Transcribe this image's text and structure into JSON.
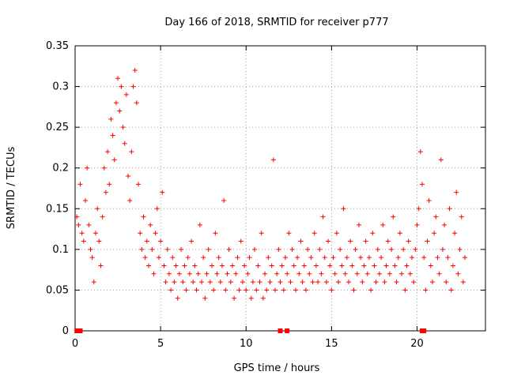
{
  "chart_data": {
    "type": "scatter",
    "title": "Day 166 of 2018, SRMTID for receiver p777",
    "xlabel": "GPS time / hours",
    "ylabel": "SRMTID / TECUs",
    "xlim": [
      0,
      24
    ],
    "ylim": [
      0,
      0.35
    ],
    "xticks": [
      0,
      5,
      10,
      15,
      20
    ],
    "xtick_labels": [
      "0",
      "5",
      "10",
      "15",
      "20"
    ],
    "yticks": [
      0,
      0.05,
      0.1,
      0.15,
      0.2,
      0.25,
      0.3,
      0.35
    ],
    "ytick_labels": [
      "0",
      "0.05",
      "0.1",
      "0.15",
      "0.2",
      "0.25",
      "0.3",
      "0.35"
    ],
    "grid": true,
    "marker": "+",
    "marker_color": "#ff0000",
    "zero_markers": [
      0.1,
      0.3,
      12.0,
      12.4,
      20.3,
      20.4
    ],
    "series": [
      {
        "name": "SRMTID",
        "points": [
          [
            0.1,
            0.14
          ],
          [
            0.2,
            0.13
          ],
          [
            0.3,
            0.18
          ],
          [
            0.4,
            0.12
          ],
          [
            0.5,
            0.11
          ],
          [
            0.6,
            0.16
          ],
          [
            0.7,
            0.2
          ],
          [
            0.8,
            0.13
          ],
          [
            0.9,
            0.1
          ],
          [
            1.0,
            0.09
          ],
          [
            1.1,
            0.06
          ],
          [
            1.2,
            0.12
          ],
          [
            1.3,
            0.15
          ],
          [
            1.4,
            0.11
          ],
          [
            1.5,
            0.08
          ],
          [
            1.6,
            0.14
          ],
          [
            1.7,
            0.2
          ],
          [
            1.8,
            0.17
          ],
          [
            1.9,
            0.22
          ],
          [
            2.0,
            0.18
          ],
          [
            2.1,
            0.26
          ],
          [
            2.2,
            0.24
          ],
          [
            2.3,
            0.21
          ],
          [
            2.4,
            0.28
          ],
          [
            2.5,
            0.31
          ],
          [
            2.6,
            0.27
          ],
          [
            2.7,
            0.3
          ],
          [
            2.8,
            0.25
          ],
          [
            2.9,
            0.23
          ],
          [
            3.0,
            0.29
          ],
          [
            3.1,
            0.19
          ],
          [
            3.2,
            0.16
          ],
          [
            3.3,
            0.22
          ],
          [
            3.4,
            0.3
          ],
          [
            3.5,
            0.32
          ],
          [
            3.6,
            0.28
          ],
          [
            3.7,
            0.18
          ],
          [
            3.8,
            0.12
          ],
          [
            3.9,
            0.1
          ],
          [
            4.0,
            0.14
          ],
          [
            4.1,
            0.09
          ],
          [
            4.2,
            0.11
          ],
          [
            4.3,
            0.08
          ],
          [
            4.4,
            0.13
          ],
          [
            4.5,
            0.1
          ],
          [
            4.6,
            0.07
          ],
          [
            4.7,
            0.12
          ],
          [
            4.8,
            0.15
          ],
          [
            4.9,
            0.09
          ],
          [
            5.0,
            0.11
          ],
          [
            5.1,
            0.17
          ],
          [
            5.2,
            0.08
          ],
          [
            5.3,
            0.06
          ],
          [
            5.4,
            0.1
          ],
          [
            5.5,
            0.07
          ],
          [
            5.6,
            0.05
          ],
          [
            5.7,
            0.09
          ],
          [
            5.8,
            0.06
          ],
          [
            5.9,
            0.08
          ],
          [
            6.0,
            0.04
          ],
          [
            6.1,
            0.07
          ],
          [
            6.2,
            0.1
          ],
          [
            6.3,
            0.06
          ],
          [
            6.4,
            0.08
          ],
          [
            6.5,
            0.05
          ],
          [
            6.6,
            0.09
          ],
          [
            6.7,
            0.07
          ],
          [
            6.8,
            0.11
          ],
          [
            6.9,
            0.06
          ],
          [
            7.0,
            0.08
          ],
          [
            7.1,
            0.05
          ],
          [
            7.2,
            0.07
          ],
          [
            7.3,
            0.13
          ],
          [
            7.4,
            0.06
          ],
          [
            7.5,
            0.09
          ],
          [
            7.6,
            0.04
          ],
          [
            7.7,
            0.07
          ],
          [
            7.8,
            0.1
          ],
          [
            7.9,
            0.06
          ],
          [
            8.0,
            0.08
          ],
          [
            8.1,
            0.05
          ],
          [
            8.2,
            0.12
          ],
          [
            8.3,
            0.07
          ],
          [
            8.4,
            0.09
          ],
          [
            8.5,
            0.06
          ],
          [
            8.6,
            0.08
          ],
          [
            8.7,
            0.16
          ],
          [
            8.8,
            0.05
          ],
          [
            8.9,
            0.07
          ],
          [
            9.0,
            0.1
          ],
          [
            9.1,
            0.06
          ],
          [
            9.2,
            0.08
          ],
          [
            9.3,
            0.04
          ],
          [
            9.4,
            0.07
          ],
          [
            9.5,
            0.09
          ],
          [
            9.6,
            0.05
          ],
          [
            9.7,
            0.11
          ],
          [
            9.8,
            0.06
          ],
          [
            9.9,
            0.08
          ],
          [
            10.0,
            0.05
          ],
          [
            10.1,
            0.07
          ],
          [
            10.2,
            0.09
          ],
          [
            10.3,
            0.04
          ],
          [
            10.4,
            0.06
          ],
          [
            10.5,
            0.1
          ],
          [
            10.6,
            0.05
          ],
          [
            10.7,
            0.08
          ],
          [
            10.8,
            0.06
          ],
          [
            10.9,
            0.12
          ],
          [
            11.0,
            0.04
          ],
          [
            11.1,
            0.07
          ],
          [
            11.2,
            0.05
          ],
          [
            11.3,
            0.09
          ],
          [
            11.4,
            0.06
          ],
          [
            11.5,
            0.08
          ],
          [
            11.6,
            0.21
          ],
          [
            11.7,
            0.05
          ],
          [
            11.8,
            0.07
          ],
          [
            11.9,
            0.1
          ],
          [
            12.0,
            0.06
          ],
          [
            12.1,
            0.08
          ],
          [
            12.2,
            0.05
          ],
          [
            12.3,
            0.09
          ],
          [
            12.4,
            0.07
          ],
          [
            12.5,
            0.12
          ],
          [
            12.6,
            0.06
          ],
          [
            12.7,
            0.1
          ],
          [
            12.8,
            0.08
          ],
          [
            12.9,
            0.05
          ],
          [
            13.0,
            0.09
          ],
          [
            13.1,
            0.07
          ],
          [
            13.2,
            0.11
          ],
          [
            13.3,
            0.06
          ],
          [
            13.4,
            0.08
          ],
          [
            13.5,
            0.05
          ],
          [
            13.6,
            0.1
          ],
          [
            13.7,
            0.07
          ],
          [
            13.8,
            0.09
          ],
          [
            13.9,
            0.06
          ],
          [
            14.0,
            0.12
          ],
          [
            14.1,
            0.08
          ],
          [
            14.2,
            0.06
          ],
          [
            14.3,
            0.1
          ],
          [
            14.4,
            0.07
          ],
          [
            14.5,
            0.14
          ],
          [
            14.6,
            0.09
          ],
          [
            14.7,
            0.06
          ],
          [
            14.8,
            0.11
          ],
          [
            14.9,
            0.08
          ],
          [
            15.0,
            0.05
          ],
          [
            15.1,
            0.09
          ],
          [
            15.2,
            0.07
          ],
          [
            15.3,
            0.12
          ],
          [
            15.4,
            0.06
          ],
          [
            15.5,
            0.1
          ],
          [
            15.6,
            0.08
          ],
          [
            15.7,
            0.15
          ],
          [
            15.8,
            0.07
          ],
          [
            15.9,
            0.09
          ],
          [
            16.0,
            0.06
          ],
          [
            16.1,
            0.11
          ],
          [
            16.2,
            0.08
          ],
          [
            16.3,
            0.05
          ],
          [
            16.4,
            0.1
          ],
          [
            16.5,
            0.07
          ],
          [
            16.6,
            0.13
          ],
          [
            16.7,
            0.09
          ],
          [
            16.8,
            0.06
          ],
          [
            16.9,
            0.08
          ],
          [
            17.0,
            0.11
          ],
          [
            17.1,
            0.07
          ],
          [
            17.2,
            0.09
          ],
          [
            17.3,
            0.05
          ],
          [
            17.4,
            0.12
          ],
          [
            17.5,
            0.08
          ],
          [
            17.6,
            0.06
          ],
          [
            17.7,
            0.1
          ],
          [
            17.8,
            0.07
          ],
          [
            17.9,
            0.09
          ],
          [
            18.0,
            0.13
          ],
          [
            18.1,
            0.06
          ],
          [
            18.2,
            0.08
          ],
          [
            18.3,
            0.11
          ],
          [
            18.4,
            0.07
          ],
          [
            18.5,
            0.1
          ],
          [
            18.6,
            0.14
          ],
          [
            18.7,
            0.08
          ],
          [
            18.8,
            0.06
          ],
          [
            18.9,
            0.09
          ],
          [
            19.0,
            0.12
          ],
          [
            19.1,
            0.07
          ],
          [
            19.2,
            0.1
          ],
          [
            19.3,
            0.05
          ],
          [
            19.4,
            0.08
          ],
          [
            19.5,
            0.11
          ],
          [
            19.6,
            0.07
          ],
          [
            19.7,
            0.09
          ],
          [
            19.8,
            0.06
          ],
          [
            19.9,
            0.1
          ],
          [
            20.0,
            0.13
          ],
          [
            20.1,
            0.15
          ],
          [
            20.2,
            0.22
          ],
          [
            20.3,
            0.18
          ],
          [
            20.4,
            0.09
          ],
          [
            20.5,
            0.05
          ],
          [
            20.6,
            0.11
          ],
          [
            20.7,
            0.16
          ],
          [
            20.8,
            0.08
          ],
          [
            20.9,
            0.06
          ],
          [
            21.0,
            0.12
          ],
          [
            21.1,
            0.14
          ],
          [
            21.2,
            0.09
          ],
          [
            21.3,
            0.07
          ],
          [
            21.4,
            0.21
          ],
          [
            21.5,
            0.1
          ],
          [
            21.6,
            0.13
          ],
          [
            21.7,
            0.06
          ],
          [
            21.8,
            0.09
          ],
          [
            21.9,
            0.15
          ],
          [
            22.0,
            0.05
          ],
          [
            22.1,
            0.08
          ],
          [
            22.2,
            0.12
          ],
          [
            22.3,
            0.17
          ],
          [
            22.4,
            0.07
          ],
          [
            22.5,
            0.1
          ],
          [
            22.6,
            0.14
          ],
          [
            22.7,
            0.06
          ],
          [
            22.8,
            0.09
          ]
        ]
      }
    ]
  }
}
